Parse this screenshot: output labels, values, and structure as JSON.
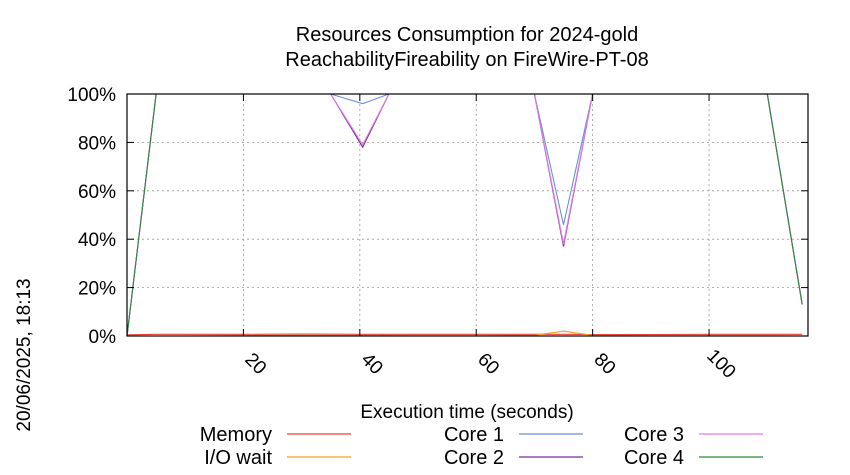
{
  "chart_data": {
    "type": "line",
    "title": "Resources Consumption for 2024-gold",
    "subtitle": "ReachabilityFireability on FireWire-PT-08",
    "xlabel": "Execution time (seconds)",
    "ylabel": "",
    "side_label": "20/06/2025, 18:13",
    "xlim": [
      0,
      117
    ],
    "ylim": [
      0,
      100
    ],
    "x_ticks": [
      20,
      40,
      60,
      80,
      100
    ],
    "y_ticks": [
      "0%",
      "20%",
      "40%",
      "60%",
      "80%",
      "100%"
    ],
    "grid": true,
    "legend_position": "bottom",
    "series": [
      {
        "name": "Memory",
        "color": "#e8413a",
        "x": [
          0,
          5,
          10,
          20,
          30,
          40,
          50,
          60,
          70,
          75,
          80,
          90,
          100,
          110,
          116
        ],
        "y": [
          0.5,
          0.7,
          0.7,
          0.7,
          0.8,
          0.7,
          0.7,
          0.7,
          0.7,
          0.7,
          0.6,
          0.6,
          0.7,
          0.7,
          0.7
        ]
      },
      {
        "name": "I/O wait",
        "color": "#f0a020",
        "x": [
          0,
          5,
          10,
          20,
          30,
          40,
          50,
          60,
          70,
          75,
          80,
          90,
          100,
          110,
          116
        ],
        "y": [
          0,
          0,
          0,
          0.2,
          0.3,
          0.2,
          0.1,
          0.1,
          0.3,
          2.0,
          0.3,
          0.1,
          0.1,
          0.1,
          0
        ]
      },
      {
        "name": "Core 1",
        "color": "#6b8fd8",
        "x": [
          0,
          5,
          35,
          40.5,
          45,
          70,
          75,
          80,
          110,
          116
        ],
        "y": [
          0,
          100,
          100,
          96,
          100,
          100,
          46,
          100,
          100,
          13
        ]
      },
      {
        "name": "Core 2",
        "color": "#7a2f9e",
        "x": [
          0,
          5,
          35,
          40.5,
          45,
          70,
          75,
          80,
          110,
          116
        ],
        "y": [
          0,
          100,
          100,
          78,
          100,
          100,
          37,
          100,
          100,
          13
        ]
      },
      {
        "name": "Core 3",
        "color": "#e07ae8",
        "x": [
          0,
          5,
          35,
          40.5,
          45,
          70,
          75,
          80,
          110,
          116
        ],
        "y": [
          0,
          100,
          100,
          79,
          100,
          100,
          38,
          100,
          100,
          13
        ]
      },
      {
        "name": "Core 4",
        "color": "#2f8a3a",
        "x": [
          0,
          5,
          35,
          40.5,
          45,
          70,
          75,
          80,
          110,
          116
        ],
        "y": [
          0,
          100,
          100,
          100,
          100,
          100,
          100,
          100,
          100,
          13
        ]
      }
    ]
  }
}
